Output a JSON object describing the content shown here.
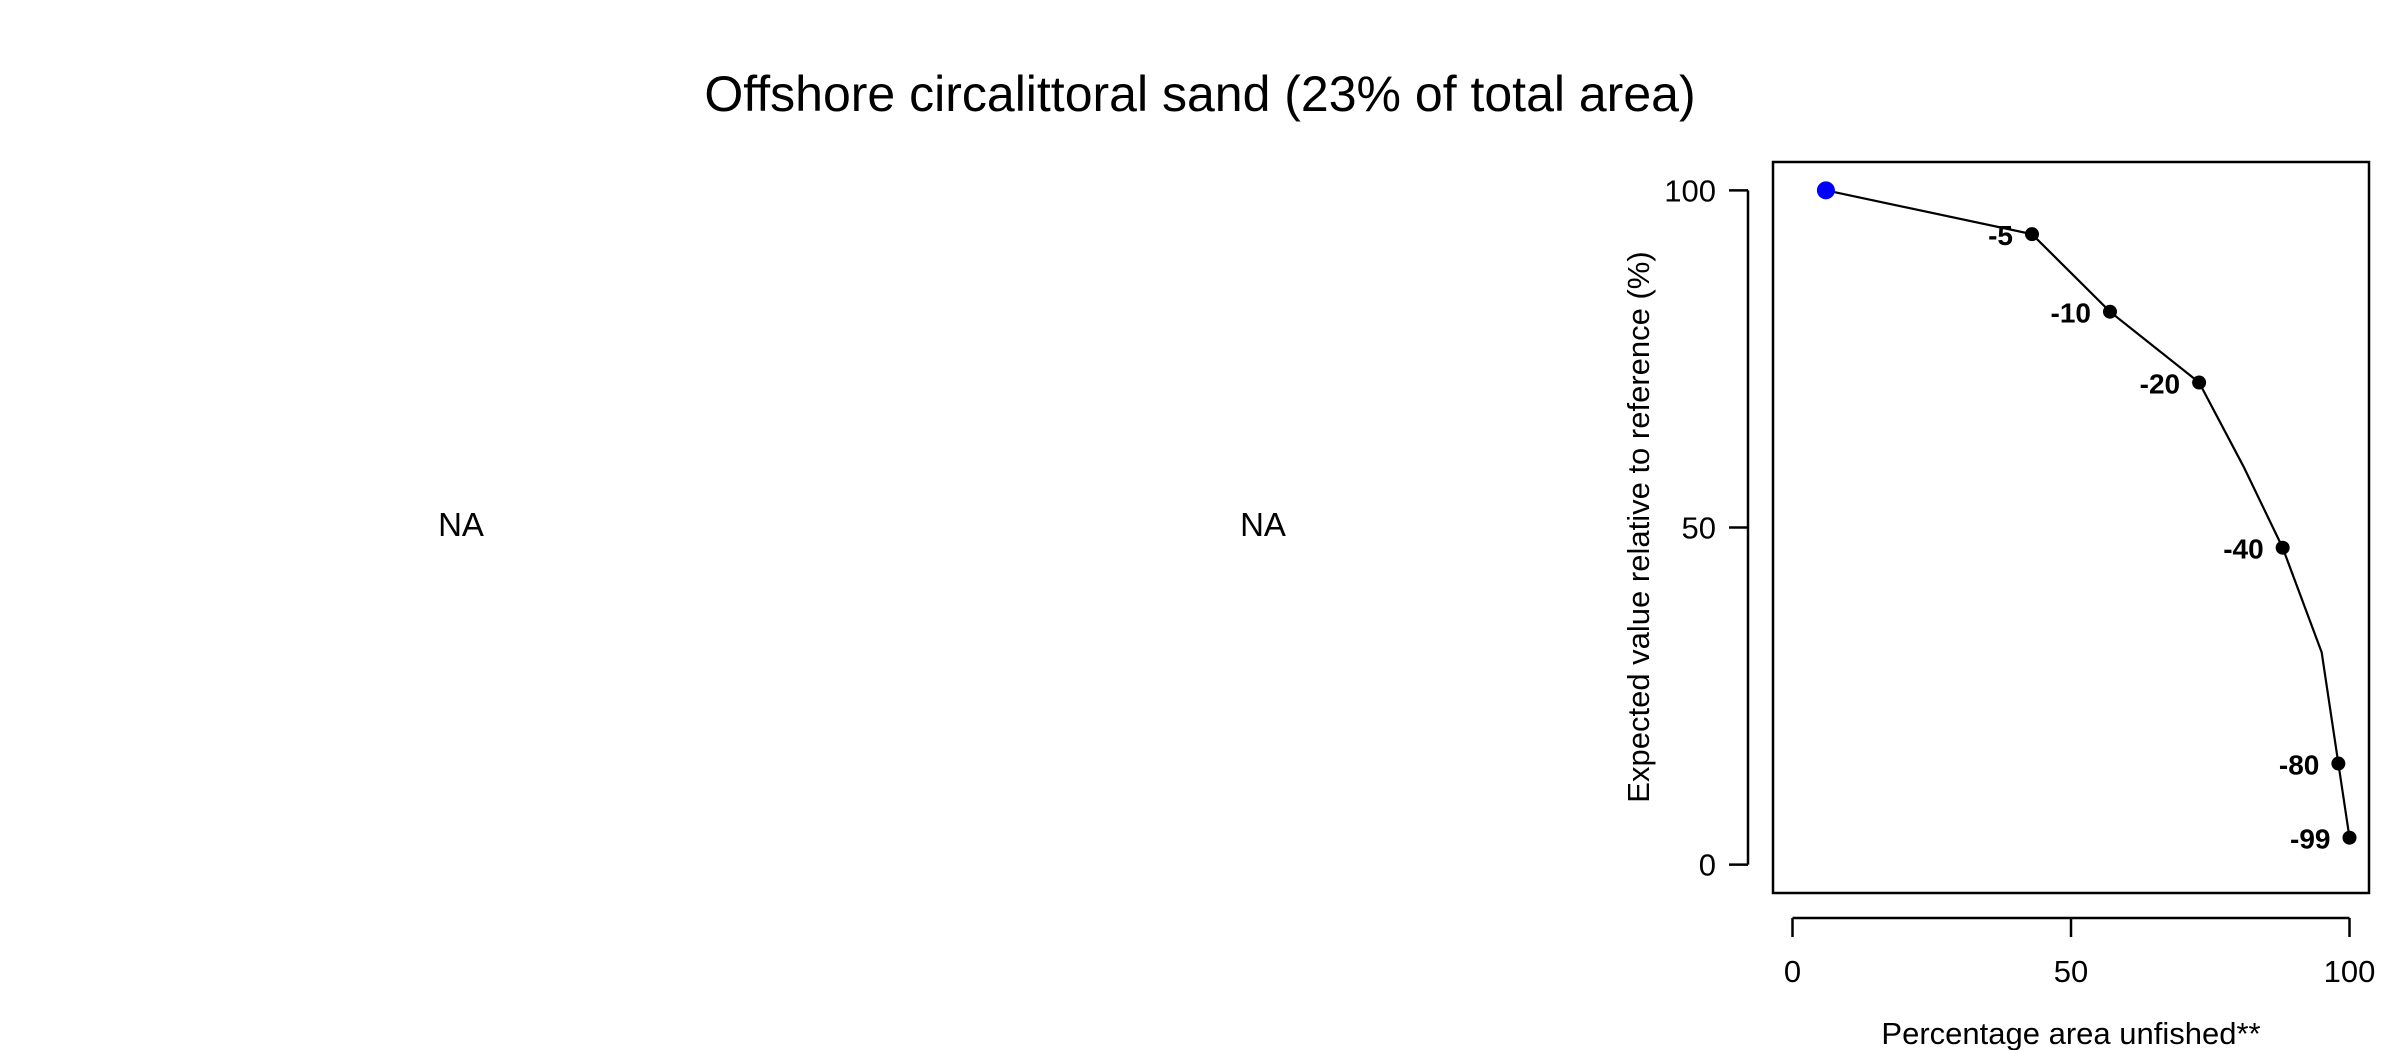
{
  "title": "Offshore circalittoral sand (23% of total area)",
  "panels": {
    "left_placeholder": "NA",
    "middle_placeholder": "NA"
  },
  "colors": {
    "highlight_point": "#0000ff",
    "points": "#000000",
    "line": "#000000"
  },
  "chart_data": {
    "type": "line",
    "xlabel": "Percentage area unfished**",
    "ylabel": "Expected value relative to reference (%)",
    "xlim": [
      -3.5,
      103.5
    ],
    "ylim": [
      -4.2,
      104.2
    ],
    "x_ticks": [
      0,
      50,
      100
    ],
    "y_ticks": [
      0,
      50,
      100
    ],
    "grid": false,
    "line": {
      "x": [
        6,
        43,
        57,
        73,
        81,
        88,
        95,
        98,
        100
      ],
      "y": [
        100,
        93.5,
        82,
        71.5,
        59,
        47,
        31.5,
        15,
        4
      ]
    },
    "highlight_point": {
      "x": 6,
      "y": 100
    },
    "labeled_points": [
      {
        "x": 43,
        "y": 93.5,
        "label": "-5"
      },
      {
        "x": 57,
        "y": 82,
        "label": "-10"
      },
      {
        "x": 73,
        "y": 71.5,
        "label": "-20"
      },
      {
        "x": 88,
        "y": 47,
        "label": "-40"
      },
      {
        "x": 98,
        "y": 15,
        "label": "-80"
      },
      {
        "x": 100,
        "y": 4,
        "label": "-99"
      }
    ]
  }
}
